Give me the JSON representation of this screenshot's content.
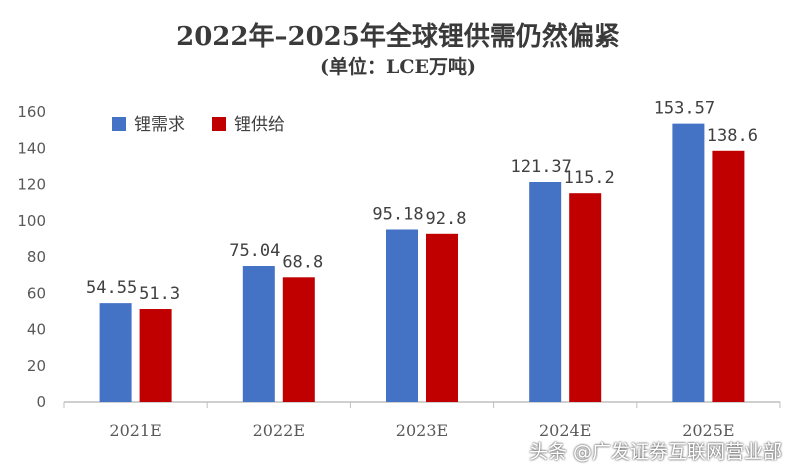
{
  "chart_data": {
    "type": "bar",
    "title": "2022年–2025年全球锂供需仍然偏紧",
    "subtitle": "(单位：LCE万吨)",
    "categories": [
      "2021E",
      "2022E",
      "2023E",
      "2024E",
      "2025E"
    ],
    "series": [
      {
        "name": "锂需求",
        "values": [
          54.55,
          75.04,
          95.18,
          121.37,
          153.57
        ],
        "labels": [
          "54.55",
          "75.04",
          "95.18",
          "121.37",
          "153.57"
        ],
        "color": "#4472C4"
      },
      {
        "name": "锂供给",
        "values": [
          51.3,
          68.8,
          92.8,
          115.2,
          138.6
        ],
        "labels": [
          "51.3",
          "68.8",
          "92.8",
          "115.2",
          "138.6"
        ],
        "color": "#C00000"
      }
    ],
    "ylim": [
      0,
      160
    ],
    "yticks": [
      0,
      20,
      40,
      60,
      80,
      100,
      120,
      140,
      160
    ],
    "grid": false,
    "legend_position": "top-left"
  },
  "watermark": "头条 @广发证券互联网营业部"
}
